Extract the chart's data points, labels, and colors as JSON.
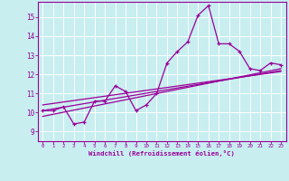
{
  "xlabel": "Windchill (Refroidissement éolien,°C)",
  "bg_color": "#c8eef0",
  "grid_color": "#ffffff",
  "line_color": "#990099",
  "xlim": [
    -0.5,
    23.5
  ],
  "ylim": [
    8.5,
    15.8
  ],
  "xticks": [
    0,
    1,
    2,
    3,
    4,
    5,
    6,
    7,
    8,
    9,
    10,
    11,
    12,
    13,
    14,
    15,
    16,
    17,
    18,
    19,
    20,
    21,
    22,
    23
  ],
  "yticks": [
    9,
    10,
    11,
    12,
    13,
    14,
    15
  ],
  "line1_x": [
    0,
    1,
    2,
    3,
    4,
    5,
    6,
    7,
    8,
    9,
    10,
    11,
    12,
    13,
    14,
    15,
    16,
    17,
    18,
    19,
    20,
    21,
    22,
    23
  ],
  "line1_y": [
    10.1,
    10.1,
    10.3,
    9.4,
    9.5,
    10.6,
    10.6,
    11.4,
    11.1,
    10.1,
    10.4,
    11.0,
    12.6,
    13.2,
    13.7,
    15.1,
    15.6,
    13.6,
    13.6,
    13.2,
    12.3,
    12.2,
    12.6,
    12.5
  ],
  "line2_x": [
    0,
    23
  ],
  "line2_y": [
    9.8,
    12.3
  ],
  "line3_x": [
    0,
    23
  ],
  "line3_y": [
    10.1,
    12.2
  ],
  "line4_x": [
    0,
    23
  ],
  "line4_y": [
    10.4,
    12.15
  ]
}
